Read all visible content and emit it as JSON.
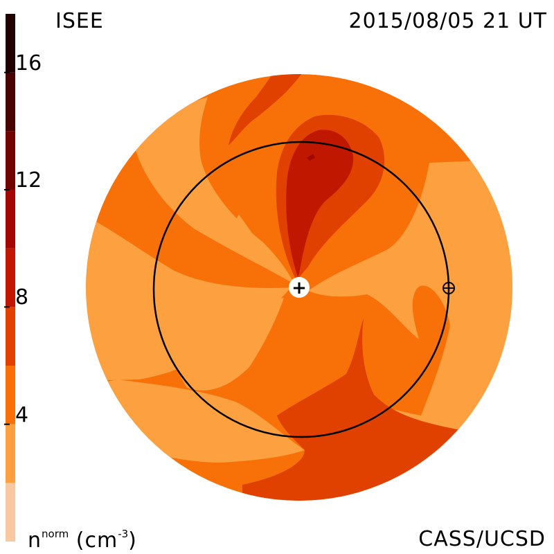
{
  "header": {
    "source_label": "ISEE",
    "datetime": "2015/08/05 21 UT"
  },
  "footer": {
    "unit_base": "n",
    "unit_sup": "norm",
    "unit_open": " (cm",
    "unit_exp": "-3",
    "unit_close": ")",
    "credit": "CASS/UCSD"
  },
  "colorbar": {
    "min": 0,
    "max": 18,
    "ticks": [
      {
        "value": 4,
        "label": "4"
      },
      {
        "value": 8,
        "label": "8"
      },
      {
        "value": 12,
        "label": "12"
      },
      {
        "value": 16,
        "label": "16"
      }
    ],
    "bands": [
      {
        "from": 0,
        "to": 2,
        "color": "#f8c8a0"
      },
      {
        "from": 2,
        "to": 4,
        "color": "#fca040"
      },
      {
        "from": 4,
        "to": 6,
        "color": "#f87008"
      },
      {
        "from": 6,
        "to": 8,
        "color": "#e04000"
      },
      {
        "from": 8,
        "to": 10,
        "color": "#c01800"
      },
      {
        "from": 10,
        "to": 12,
        "color": "#a00800"
      },
      {
        "from": 12,
        "to": 14,
        "color": "#700400"
      },
      {
        "from": 14,
        "to": 16,
        "color": "#480400"
      },
      {
        "from": 16,
        "to": 18,
        "color": "#200000"
      }
    ]
  },
  "markers": {
    "sun_symbol": "+",
    "earth_symbol": "⊕"
  },
  "colors": {
    "level_2_4": "#fca040",
    "level_4_6": "#f87008",
    "level_6_8": "#e04000",
    "level_8_10": "#c01800",
    "level_10_12": "#a00800"
  }
}
